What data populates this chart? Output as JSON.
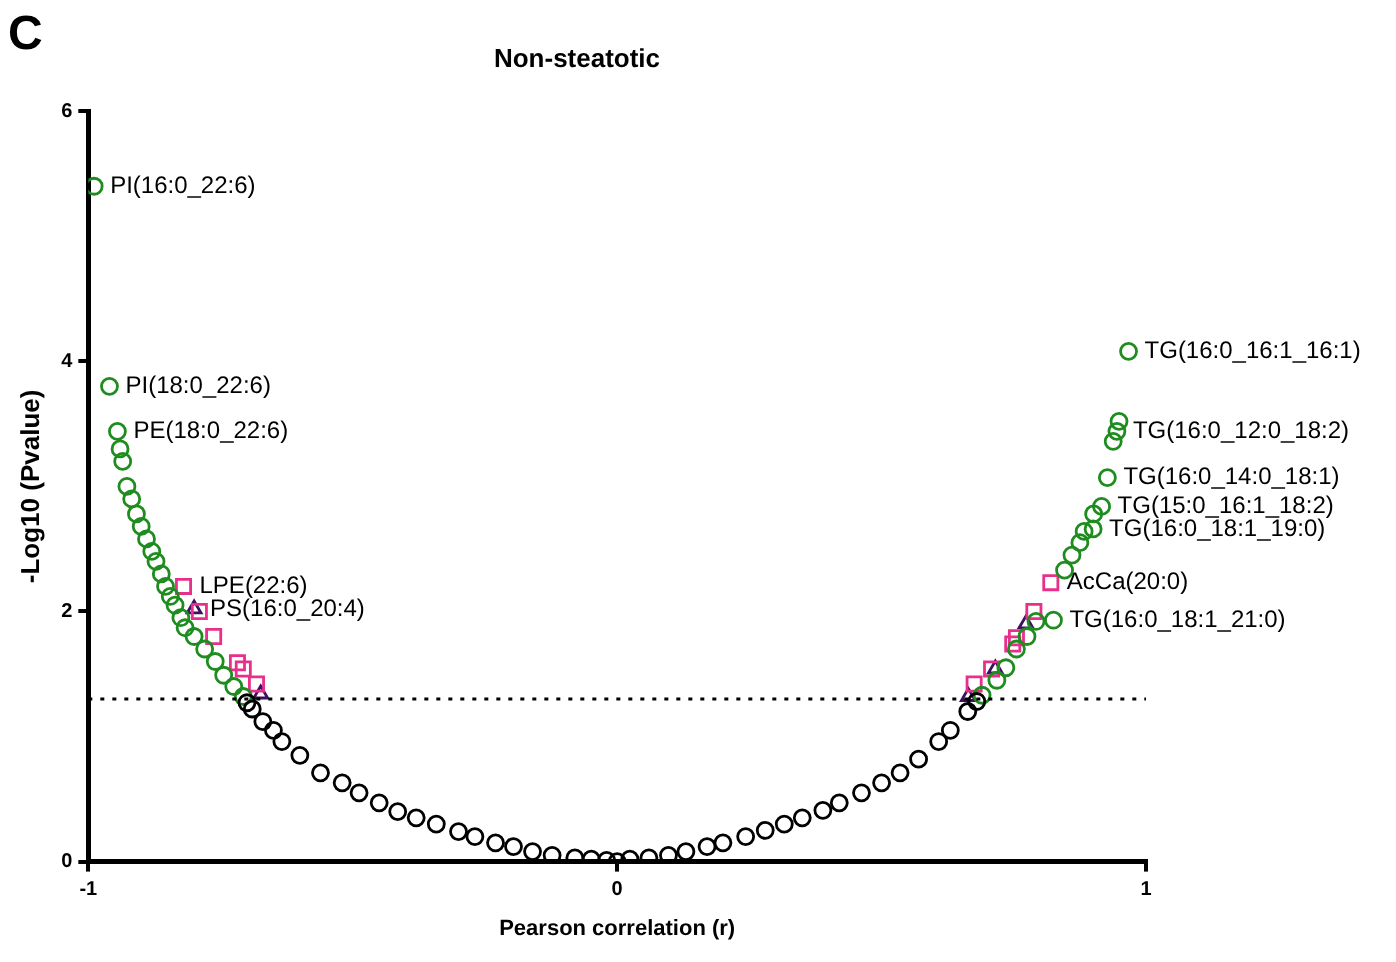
{
  "chart_data": {
    "type": "scatter",
    "title": "Non-steatotic",
    "xlabel": "Pearson correlation (r)",
    "ylabel": "-Log10 (Pvalue)",
    "xlim": [
      -1,
      1
    ],
    "xticks": [
      -1,
      0,
      1
    ],
    "ylim": [
      0,
      6
    ],
    "yticks": [
      0,
      2,
      4,
      6
    ],
    "grid": false,
    "legend": false,
    "series": [
      {
        "marker": "circle",
        "color": "#000000",
        "x": [
          -0.7,
          -0.69,
          -0.67,
          -0.65,
          -0.634,
          -0.6,
          -0.561,
          -0.52,
          -0.488,
          -0.45,
          -0.415,
          -0.38,
          -0.342,
          -0.3,
          -0.269,
          -0.23,
          -0.196,
          -0.16,
          -0.123,
          -0.08,
          -0.049,
          -0.02,
          0.0,
          0.024,
          0.06,
          0.097,
          0.13,
          0.17,
          0.2,
          0.243,
          0.28,
          0.316,
          0.35,
          0.389,
          0.42,
          0.462,
          0.5,
          0.535,
          0.57,
          0.608,
          0.63,
          0.663,
          0.68
        ],
        "values": [
          1.27,
          1.22,
          1.12,
          1.05,
          0.96,
          0.85,
          0.71,
          0.63,
          0.55,
          0.47,
          0.4,
          0.35,
          0.3,
          0.24,
          0.2,
          0.15,
          0.12,
          0.08,
          0.05,
          0.03,
          0.02,
          0.01,
          0.0,
          0.02,
          0.03,
          0.05,
          0.08,
          0.12,
          0.15,
          0.2,
          0.25,
          0.3,
          0.35,
          0.41,
          0.47,
          0.55,
          0.63,
          0.71,
          0.82,
          0.96,
          1.05,
          1.2,
          1.28
        ]
      },
      {
        "marker": "circle",
        "color": "#1e8c1e",
        "x": [
          -0.989,
          -0.96,
          -0.945,
          -0.94,
          -0.935,
          -0.927,
          -0.918,
          -0.909,
          -0.9,
          -0.89,
          -0.88,
          -0.872,
          -0.862,
          -0.854,
          -0.845,
          -0.836,
          -0.825,
          -0.817,
          -0.8,
          -0.78,
          -0.76,
          -0.744,
          -0.725,
          -0.707,
          0.69,
          0.718,
          0.735,
          0.755,
          0.775,
          0.792,
          0.825,
          0.846,
          0.86,
          0.875,
          0.883,
          0.9,
          0.901,
          0.916,
          0.927,
          0.938,
          0.945,
          0.949,
          0.967
        ],
        "values": [
          5.4,
          3.8,
          3.44,
          3.3,
          3.2,
          3.0,
          2.9,
          2.78,
          2.68,
          2.58,
          2.48,
          2.4,
          2.3,
          2.2,
          2.12,
          2.05,
          1.95,
          1.87,
          1.8,
          1.7,
          1.6,
          1.49,
          1.4,
          1.32,
          1.33,
          1.45,
          1.55,
          1.7,
          1.8,
          1.92,
          1.93,
          2.33,
          2.45,
          2.55,
          2.64,
          2.66,
          2.78,
          2.84,
          3.07,
          3.36,
          3.44,
          3.52,
          4.08
        ]
      },
      {
        "marker": "square",
        "color": "#e8308a",
        "x": [
          -0.82,
          -0.79,
          -0.763,
          -0.718,
          -0.707,
          -0.682,
          0.82,
          0.788,
          0.755,
          0.748,
          0.708,
          0.675
        ],
        "values": [
          2.2,
          2.0,
          1.8,
          1.59,
          1.54,
          1.42,
          2.23,
          2.0,
          1.79,
          1.74,
          1.54,
          1.42
        ]
      },
      {
        "marker": "triangle",
        "color": "#3d1060",
        "x": [
          -0.8,
          -0.674,
          0.773,
          0.715,
          0.664
        ],
        "values": [
          2.02,
          1.34,
          1.9,
          1.54,
          1.32
        ]
      }
    ],
    "ref_lines": [
      {
        "axis": "y",
        "value": 1.3,
        "color": "#000000",
        "line_style": "dotted"
      }
    ],
    "annotations": [
      "C",
      {
        "text": "PI(16:0_22:6)",
        "x": -0.989,
        "y": 5.4
      },
      {
        "text": "PI(18:0_22:6)",
        "x": -0.96,
        "y": 3.8
      },
      {
        "text": "PE(18:0_22:6)",
        "x": -0.945,
        "y": 3.44
      },
      {
        "text": "LPE(22:6)",
        "x": -0.82,
        "y": 2.2
      },
      {
        "text": "PS(16:0_20:4)",
        "x": -0.8,
        "y": 2.02
      },
      {
        "text": "TG(16:0_16:1_16:1)",
        "x": 0.967,
        "y": 4.08
      },
      {
        "text": "TG(16:0_12:0_18:2)",
        "x": 0.945,
        "y": 3.44
      },
      {
        "text": "TG(16:0_14:0_18:1)",
        "x": 0.927,
        "y": 3.07
      },
      {
        "text": "TG(15:0_16:1_18:2)",
        "x": 0.916,
        "y": 2.84
      },
      {
        "text": "TG(16:0_18:1_19:0)",
        "x": 0.9,
        "y": 2.66
      },
      {
        "text": "AcCa(20:0)",
        "x": 0.82,
        "y": 2.23
      },
      {
        "text": "TG(16:0_18:1_21:0)",
        "x": 0.825,
        "y": 1.93
      }
    ]
  }
}
